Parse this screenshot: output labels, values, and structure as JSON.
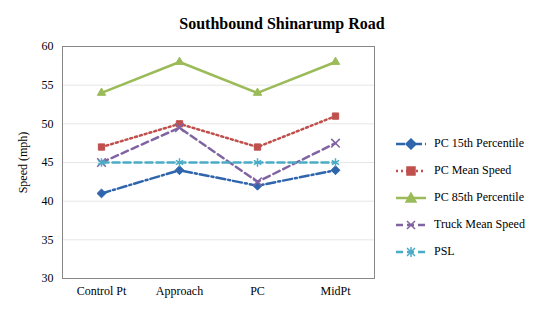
{
  "chart_data": {
    "type": "line",
    "title": "Southbound Shinarump Road",
    "y_label": "Speed (mph)",
    "categories": [
      "Control Pt",
      "Approach",
      "PC",
      "MidPt"
    ],
    "series": [
      {
        "name": "PC 15th Percentile",
        "color": "#2e65ad",
        "marker": "diamond",
        "line_style": "dashdot",
        "values": [
          41,
          44,
          42,
          44
        ]
      },
      {
        "name": "PC Mean Speed",
        "color": "#c0504d",
        "marker": "square",
        "line_style": "dotted",
        "values": [
          47,
          50,
          47,
          51
        ]
      },
      {
        "name": "PC 85th Percentile",
        "color": "#9bbb59",
        "marker": "triangle",
        "line_style": "solid",
        "values": [
          54,
          58,
          54,
          58
        ]
      },
      {
        "name": "Truck Mean Speed",
        "color": "#8064a2",
        "marker": "x",
        "line_style": "dashed",
        "values": [
          45,
          49.5,
          42.5,
          47.5
        ]
      },
      {
        "name": "PSL",
        "color": "#4bacc6",
        "marker": "asterisk",
        "line_style": "dashed",
        "values": [
          45,
          45,
          45,
          45
        ]
      }
    ],
    "ylim": [
      30,
      60
    ],
    "yticks": [
      30,
      35,
      40,
      45,
      50,
      55,
      60
    ],
    "grid": true,
    "legend": "right"
  }
}
